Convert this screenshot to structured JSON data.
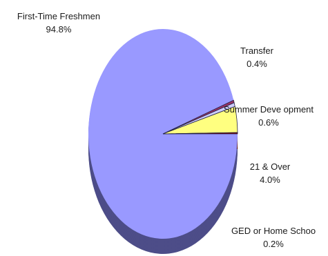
{
  "chart_data": {
    "type": "pie",
    "three_d": true,
    "slices": [
      {
        "label": "First-Time Freshmen",
        "value": 94.8,
        "display": "94.8%",
        "color": "#9999ff",
        "side_color": "#4d4d88"
      },
      {
        "label": "Transfer",
        "value": 0.4,
        "display": "0.4%",
        "color": "#993366",
        "side_color": "#5c1f3d"
      },
      {
        "label": "Summer Development",
        "value": 0.6,
        "display": "0.6%",
        "color": "#ccccff",
        "side_color": "#7a7a99"
      },
      {
        "label": "21 & Over",
        "value": 4.0,
        "display": "4.0%",
        "color": "#ffff80",
        "side_color": "#99994d"
      },
      {
        "label": "GED or Home School",
        "value": 0.2,
        "display": "0.2%",
        "color": "#800000",
        "side_color": "#4d0000"
      }
    ],
    "label_texts": {
      "first_time_freshmen": "First-Time Freshmen",
      "transfer": "Transfer",
      "summer_development": "Summer Deve opment",
      "twenty_one_over": "21 & Over",
      "ged_home_school": "GED or Home Schoo"
    },
    "legend": "none"
  }
}
